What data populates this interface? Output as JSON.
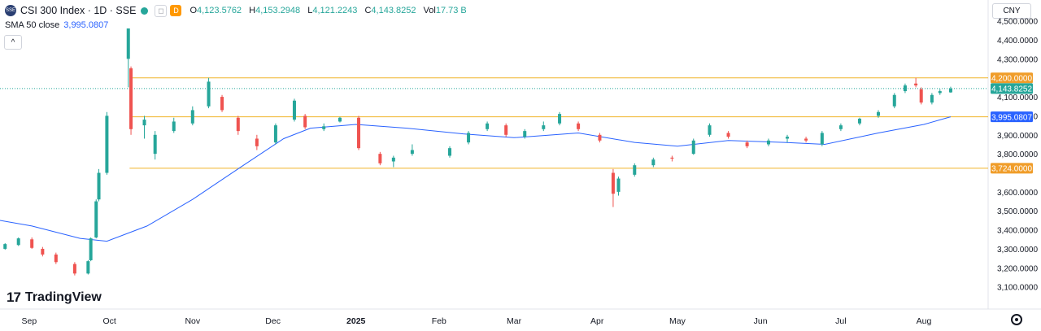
{
  "header": {
    "badge": "SSE",
    "title": "CSI 300 Index · 1D · SSE",
    "d_badge": "D",
    "open_label": "O",
    "open": "4,123.5762",
    "high_label": "H",
    "high": "4,153.2948",
    "low_label": "L",
    "low": "4,121.2243",
    "close_label": "C",
    "close": "4,143.8252",
    "vol_label": "Vol",
    "vol": "17.73 B",
    "sma_label": "SMA 50 close",
    "sma_value": "3,995.0807",
    "collapse_glyph": "^"
  },
  "currency_button": "CNY",
  "logo": {
    "mark": "17",
    "text": "TradingView"
  },
  "icons": {
    "settings": "gear-icon"
  },
  "colors": {
    "up": "#26a69a",
    "down": "#ef5350",
    "sma": "#2962ff",
    "level": "#f0b42a"
  },
  "chart_data": {
    "type": "candlestick",
    "price_range": [
      3050,
      4560
    ],
    "y_ticks": [
      "4,500.0000",
      "4,400.0000",
      "4,300.0000",
      "4,100.0000",
      "4,000.0000",
      "3,900.0000",
      "3,800.0000",
      "3,600.0000",
      "3,500.0000",
      "3,400.0000",
      "3,300.0000",
      "3,200.0000",
      "3,100.0000"
    ],
    "x_labels": [
      "Sep",
      "Oct",
      "Nov",
      "Dec",
      "2025",
      "Feb",
      "Mar",
      "Apr",
      "May",
      "Jun",
      "Jul",
      "Aug"
    ],
    "levels": [
      {
        "value": 4200,
        "label": "4,200.0000",
        "start": "2024-10-10"
      },
      {
        "value": 3995.0807,
        "label": "3,995.0807",
        "start": "2024-10-10"
      },
      {
        "value": 3724,
        "label": "3,724.0000",
        "start": "2024-10-10"
      }
    ],
    "last_price": {
      "value": 4143.8252,
      "label": "4,143.8252"
    },
    "candles": [
      {
        "date": "2024-08-20",
        "o": 3310,
        "h": 3320,
        "l": 3290,
        "c": 3305
      },
      {
        "date": "2024-08-23",
        "o": 3300,
        "h": 3330,
        "l": 3295,
        "c": 3325
      },
      {
        "date": "2024-08-28",
        "o": 3320,
        "h": 3360,
        "l": 3315,
        "c": 3355
      },
      {
        "date": "2024-09-02",
        "o": 3350,
        "h": 3360,
        "l": 3300,
        "c": 3305
      },
      {
        "date": "2024-09-06",
        "o": 3300,
        "h": 3310,
        "l": 3260,
        "c": 3270
      },
      {
        "date": "2024-09-11",
        "o": 3270,
        "h": 3280,
        "l": 3220,
        "c": 3230
      },
      {
        "date": "2024-09-18",
        "o": 3220,
        "h": 3230,
        "l": 3160,
        "c": 3170
      },
      {
        "date": "2024-09-23",
        "o": 3170,
        "h": 3240,
        "l": 3165,
        "c": 3235
      },
      {
        "date": "2024-09-24",
        "o": 3240,
        "h": 3360,
        "l": 3235,
        "c": 3355
      },
      {
        "date": "2024-09-26",
        "o": 3360,
        "h": 3560,
        "l": 3355,
        "c": 3550
      },
      {
        "date": "2024-09-27",
        "o": 3560,
        "h": 3720,
        "l": 3550,
        "c": 3700
      },
      {
        "date": "2024-09-30",
        "o": 3700,
        "h": 4020,
        "l": 3690,
        "c": 4000
      },
      {
        "date": "2024-10-08",
        "o": 4300,
        "h": 4460,
        "l": 4150,
        "c": 4460
      },
      {
        "date": "2024-10-09",
        "o": 4250,
        "h": 4260,
        "l": 3900,
        "c": 3930
      },
      {
        "date": "2024-10-14",
        "o": 3950,
        "h": 4000,
        "l": 3880,
        "c": 3980
      },
      {
        "date": "2024-10-18",
        "o": 3800,
        "h": 3920,
        "l": 3770,
        "c": 3900
      },
      {
        "date": "2024-10-25",
        "o": 3920,
        "h": 3990,
        "l": 3910,
        "c": 3970
      },
      {
        "date": "2024-11-01",
        "o": 3960,
        "h": 4050,
        "l": 3950,
        "c": 4030
      },
      {
        "date": "2024-11-07",
        "o": 4050,
        "h": 4200,
        "l": 4040,
        "c": 4180
      },
      {
        "date": "2024-11-12",
        "o": 4100,
        "h": 4110,
        "l": 4020,
        "c": 4030
      },
      {
        "date": "2024-11-18",
        "o": 3990,
        "h": 4000,
        "l": 3900,
        "c": 3920
      },
      {
        "date": "2024-11-25",
        "o": 3880,
        "h": 3900,
        "l": 3820,
        "c": 3840
      },
      {
        "date": "2024-12-02",
        "o": 3860,
        "h": 3960,
        "l": 3850,
        "c": 3950
      },
      {
        "date": "2024-12-09",
        "o": 3980,
        "h": 4090,
        "l": 3970,
        "c": 4080
      },
      {
        "date": "2024-12-13",
        "o": 4000,
        "h": 4010,
        "l": 3930,
        "c": 3940
      },
      {
        "date": "2024-12-20",
        "o": 3930,
        "h": 3960,
        "l": 3920,
        "c": 3945
      },
      {
        "date": "2024-12-26",
        "o": 3970,
        "h": 3995,
        "l": 3965,
        "c": 3990
      },
      {
        "date": "2025-01-02",
        "o": 3990,
        "h": 4000,
        "l": 3820,
        "c": 3830
      },
      {
        "date": "2025-01-10",
        "o": 3800,
        "h": 3810,
        "l": 3740,
        "c": 3750
      },
      {
        "date": "2025-01-15",
        "o": 3760,
        "h": 3790,
        "l": 3730,
        "c": 3780
      },
      {
        "date": "2025-01-22",
        "o": 3800,
        "h": 3850,
        "l": 3790,
        "c": 3820
      },
      {
        "date": "2025-02-05",
        "o": 3790,
        "h": 3840,
        "l": 3780,
        "c": 3830
      },
      {
        "date": "2025-02-12",
        "o": 3860,
        "h": 3920,
        "l": 3850,
        "c": 3910
      },
      {
        "date": "2025-02-19",
        "o": 3930,
        "h": 3970,
        "l": 3920,
        "c": 3960
      },
      {
        "date": "2025-02-26",
        "o": 3950,
        "h": 3960,
        "l": 3890,
        "c": 3900
      },
      {
        "date": "2025-03-05",
        "o": 3890,
        "h": 3930,
        "l": 3880,
        "c": 3920
      },
      {
        "date": "2025-03-12",
        "o": 3930,
        "h": 3970,
        "l": 3920,
        "c": 3950
      },
      {
        "date": "2025-03-18",
        "o": 3960,
        "h": 4020,
        "l": 3950,
        "c": 4010
      },
      {
        "date": "2025-03-25",
        "o": 3960,
        "h": 3970,
        "l": 3920,
        "c": 3930
      },
      {
        "date": "2025-04-02",
        "o": 3900,
        "h": 3910,
        "l": 3860,
        "c": 3870
      },
      {
        "date": "2025-04-07",
        "o": 3700,
        "h": 3720,
        "l": 3520,
        "c": 3590
      },
      {
        "date": "2025-04-09",
        "o": 3600,
        "h": 3680,
        "l": 3580,
        "c": 3670
      },
      {
        "date": "2025-04-15",
        "o": 3690,
        "h": 3750,
        "l": 3680,
        "c": 3740
      },
      {
        "date": "2025-04-22",
        "o": 3740,
        "h": 3780,
        "l": 3730,
        "c": 3770
      },
      {
        "date": "2025-04-29",
        "o": 3780,
        "h": 3790,
        "l": 3760,
        "c": 3775
      },
      {
        "date": "2025-05-07",
        "o": 3800,
        "h": 3880,
        "l": 3795,
        "c": 3870
      },
      {
        "date": "2025-05-13",
        "o": 3900,
        "h": 3960,
        "l": 3890,
        "c": 3950
      },
      {
        "date": "2025-05-20",
        "o": 3910,
        "h": 3920,
        "l": 3880,
        "c": 3890
      },
      {
        "date": "2025-05-27",
        "o": 3860,
        "h": 3870,
        "l": 3830,
        "c": 3840
      },
      {
        "date": "2025-06-04",
        "o": 3850,
        "h": 3880,
        "l": 3840,
        "c": 3870
      },
      {
        "date": "2025-06-11",
        "o": 3880,
        "h": 3900,
        "l": 3860,
        "c": 3890
      },
      {
        "date": "2025-06-18",
        "o": 3880,
        "h": 3890,
        "l": 3860,
        "c": 3870
      },
      {
        "date": "2025-06-24",
        "o": 3850,
        "h": 3920,
        "l": 3840,
        "c": 3910
      },
      {
        "date": "2025-07-01",
        "o": 3930,
        "h": 3960,
        "l": 3920,
        "c": 3950
      },
      {
        "date": "2025-07-08",
        "o": 3960,
        "h": 3990,
        "l": 3950,
        "c": 3985
      },
      {
        "date": "2025-07-15",
        "o": 4000,
        "h": 4030,
        "l": 3990,
        "c": 4020
      },
      {
        "date": "2025-07-21",
        "o": 4050,
        "h": 4120,
        "l": 4040,
        "c": 4110
      },
      {
        "date": "2025-07-25",
        "o": 4130,
        "h": 4170,
        "l": 4120,
        "c": 4160
      },
      {
        "date": "2025-07-29",
        "o": 4170,
        "h": 4200,
        "l": 4150,
        "c": 4160
      },
      {
        "date": "2025-07-31",
        "o": 4140,
        "h": 4150,
        "l": 4060,
        "c": 4070
      },
      {
        "date": "2025-08-04",
        "o": 4070,
        "h": 4120,
        "l": 4060,
        "c": 4110
      },
      {
        "date": "2025-08-07",
        "o": 4120,
        "h": 4140,
        "l": 4110,
        "c": 4130
      },
      {
        "date": "2025-08-11",
        "o": 4123.5762,
        "h": 4153.2948,
        "l": 4121.2243,
        "c": 4143.8252
      }
    ],
    "sma_series": {
      "name": "SMA 50 close",
      "points": [
        {
          "date": "2024-08-15",
          "v": 3465
        },
        {
          "date": "2024-09-02",
          "v": 3420
        },
        {
          "date": "2024-09-20",
          "v": 3355
        },
        {
          "date": "2024-09-30",
          "v": 3340
        },
        {
          "date": "2024-10-15",
          "v": 3420
        },
        {
          "date": "2024-11-01",
          "v": 3560
        },
        {
          "date": "2024-11-20",
          "v": 3740
        },
        {
          "date": "2024-12-05",
          "v": 3880
        },
        {
          "date": "2024-12-15",
          "v": 3935
        },
        {
          "date": "2025-01-01",
          "v": 3955
        },
        {
          "date": "2025-01-20",
          "v": 3935
        },
        {
          "date": "2025-02-10",
          "v": 3905
        },
        {
          "date": "2025-03-01",
          "v": 3885
        },
        {
          "date": "2025-03-25",
          "v": 3910
        },
        {
          "date": "2025-04-15",
          "v": 3860
        },
        {
          "date": "2025-05-01",
          "v": 3840
        },
        {
          "date": "2025-05-20",
          "v": 3870
        },
        {
          "date": "2025-06-10",
          "v": 3860
        },
        {
          "date": "2025-06-25",
          "v": 3850
        },
        {
          "date": "2025-07-15",
          "v": 3910
        },
        {
          "date": "2025-08-01",
          "v": 3955
        },
        {
          "date": "2025-08-11",
          "v": 3995.0807
        }
      ]
    }
  }
}
